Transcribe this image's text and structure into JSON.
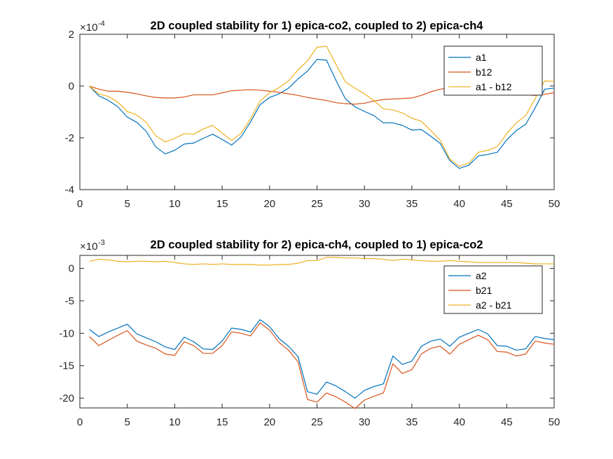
{
  "chart_data": [
    {
      "type": "line",
      "title": "2D coupled stability for 1) epica-co2, coupled to 2) epica-ch4",
      "exponent_prefix": "×10",
      "exponent_value": "-4",
      "xlim": [
        0,
        50
      ],
      "ylim": [
        -4,
        2
      ],
      "xticks": [
        0,
        5,
        10,
        15,
        20,
        25,
        30,
        35,
        40,
        45,
        50
      ],
      "yticks": [
        -4,
        -2,
        0,
        2
      ],
      "legend_position": "top-right",
      "x": [
        1,
        2,
        3,
        4,
        5,
        6,
        7,
        8,
        9,
        10,
        11,
        12,
        13,
        14,
        15,
        16,
        17,
        18,
        19,
        20,
        21,
        22,
        23,
        24,
        25,
        26,
        27,
        28,
        29,
        30,
        31,
        32,
        33,
        34,
        35,
        36,
        37,
        38,
        39,
        40,
        41,
        42,
        43,
        44,
        45,
        46,
        47,
        48,
        49,
        50
      ],
      "series": [
        {
          "name": "a1",
          "color": "#0072BD",
          "values": [
            0,
            -0.38,
            -0.55,
            -0.8,
            -1.2,
            -1.4,
            -1.75,
            -2.35,
            -2.62,
            -2.48,
            -2.24,
            -2.2,
            -2.02,
            -1.86,
            -2.06,
            -2.28,
            -1.96,
            -1.38,
            -0.72,
            -0.44,
            -0.3,
            -0.08,
            0.28,
            0.58,
            1.03,
            1.0,
            0.22,
            -0.5,
            -0.8,
            -0.98,
            -1.14,
            -1.42,
            -1.42,
            -1.52,
            -1.7,
            -1.68,
            -1.94,
            -2.22,
            -2.88,
            -3.18,
            -3.06,
            -2.7,
            -2.64,
            -2.56,
            -2.08,
            -1.72,
            -1.48,
            -0.84,
            -0.12,
            -0.08
          ]
        },
        {
          "name": "b12",
          "color": "#D95319",
          "values": [
            0,
            -0.12,
            -0.2,
            -0.2,
            -0.24,
            -0.3,
            -0.38,
            -0.44,
            -0.46,
            -0.46,
            -0.42,
            -0.34,
            -0.34,
            -0.34,
            -0.26,
            -0.18,
            -0.16,
            -0.14,
            -0.16,
            -0.2,
            -0.24,
            -0.3,
            -0.36,
            -0.44,
            -0.5,
            -0.56,
            -0.64,
            -0.68,
            -0.7,
            -0.66,
            -0.58,
            -0.52,
            -0.5,
            -0.48,
            -0.46,
            -0.36,
            -0.22,
            -0.12,
            -0.06,
            -0.04,
            -0.06,
            -0.1,
            -0.16,
            -0.22,
            -0.26,
            -0.3,
            -0.34,
            -0.36,
            -0.32,
            -0.26
          ]
        },
        {
          "name": "a1 - b12",
          "color": "#EDB120",
          "values": [
            0,
            -0.3,
            -0.4,
            -0.62,
            -0.98,
            -1.12,
            -1.4,
            -1.92,
            -2.16,
            -2.02,
            -1.84,
            -1.86,
            -1.66,
            -1.52,
            -1.82,
            -2.1,
            -1.82,
            -1.26,
            -0.58,
            -0.26,
            -0.06,
            0.2,
            0.62,
            0.98,
            1.5,
            1.54,
            0.84,
            0.16,
            -0.08,
            -0.3,
            -0.56,
            -0.88,
            -0.92,
            -1.04,
            -1.24,
            -1.36,
            -1.72,
            -2.1,
            -2.82,
            -3.1,
            -2.98,
            -2.56,
            -2.48,
            -2.34,
            -1.84,
            -1.42,
            -1.14,
            -0.48,
            0.2,
            0.18
          ]
        }
      ]
    },
    {
      "type": "line",
      "title": "2D coupled stability for 2) epica-ch4, coupled to 1) epica-co2",
      "exponent_prefix": "×10",
      "exponent_value": "-3",
      "xlim": [
        0,
        50
      ],
      "ylim": [
        -21.5,
        2
      ],
      "xticks": [
        0,
        5,
        10,
        15,
        20,
        25,
        30,
        35,
        40,
        45,
        50
      ],
      "yticks": [
        -20,
        -15,
        -10,
        -5,
        0
      ],
      "legend_position": "top-right",
      "x": [
        1,
        2,
        3,
        4,
        5,
        6,
        7,
        8,
        9,
        10,
        11,
        12,
        13,
        14,
        15,
        16,
        17,
        18,
        19,
        20,
        21,
        22,
        23,
        24,
        25,
        26,
        27,
        28,
        29,
        30,
        31,
        32,
        33,
        34,
        35,
        36,
        37,
        38,
        39,
        40,
        41,
        42,
        43,
        44,
        45,
        46,
        47,
        48,
        49,
        50
      ],
      "series": [
        {
          "name": "a2",
          "color": "#0072BD",
          "values": [
            -9.4,
            -10.5,
            -9.8,
            -9.2,
            -8.6,
            -10.1,
            -10.7,
            -11.3,
            -12.1,
            -12.5,
            -10.6,
            -11.3,
            -12.4,
            -12.5,
            -11.2,
            -9.2,
            -9.4,
            -9.8,
            -7.9,
            -9.0,
            -10.8,
            -12.0,
            -13.6,
            -19.0,
            -19.4,
            -17.5,
            -18.1,
            -19.0,
            -20.0,
            -18.8,
            -18.2,
            -17.8,
            -13.5,
            -14.8,
            -14.3,
            -12.0,
            -11.2,
            -10.9,
            -12.0,
            -10.6,
            -10.0,
            -9.4,
            -10.1,
            -11.9,
            -12.0,
            -12.6,
            -12.4,
            -10.5,
            -10.8,
            -11.0
          ]
        },
        {
          "name": "b21",
          "color": "#D95319",
          "values": [
            -10.5,
            -11.9,
            -11.1,
            -10.3,
            -9.6,
            -11.2,
            -11.8,
            -12.3,
            -13.2,
            -13.4,
            -11.3,
            -11.9,
            -13.1,
            -13.1,
            -11.9,
            -9.8,
            -10.0,
            -10.4,
            -8.4,
            -9.5,
            -11.4,
            -12.6,
            -14.4,
            -20.2,
            -20.6,
            -19.2,
            -19.8,
            -20.6,
            -21.6,
            -20.3,
            -19.7,
            -19.2,
            -14.7,
            -16.2,
            -15.6,
            -13.2,
            -12.3,
            -12.0,
            -13.2,
            -11.7,
            -11.0,
            -10.3,
            -11.0,
            -12.8,
            -12.9,
            -13.5,
            -13.2,
            -11.2,
            -11.5,
            -11.7
          ]
        },
        {
          "name": "a2 - b21",
          "color": "#EDB120",
          "values": [
            1.1,
            1.4,
            1.3,
            1.1,
            1.0,
            1.1,
            1.1,
            1.0,
            1.1,
            0.9,
            0.7,
            0.6,
            0.7,
            0.6,
            0.7,
            0.6,
            0.6,
            0.6,
            0.5,
            0.5,
            0.6,
            0.6,
            0.8,
            1.2,
            1.2,
            1.7,
            1.7,
            1.6,
            1.6,
            1.5,
            1.5,
            1.4,
            1.2,
            1.4,
            1.3,
            1.2,
            1.1,
            1.1,
            1.2,
            1.1,
            1.0,
            0.9,
            0.9,
            0.9,
            0.9,
            0.9,
            0.8,
            0.7,
            0.7,
            0.7
          ]
        }
      ]
    }
  ]
}
